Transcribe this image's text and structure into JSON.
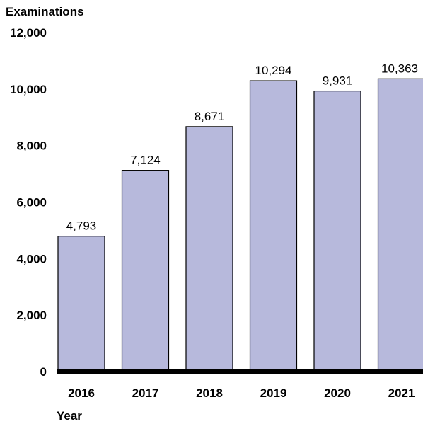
{
  "chart_data": {
    "type": "bar",
    "title": "",
    "ylabel": "Examinations",
    "xlabel": "Year",
    "categories": [
      "2016",
      "2017",
      "2018",
      "2019",
      "2020",
      "2021"
    ],
    "values": [
      4793,
      7124,
      8671,
      10294,
      9931,
      10363
    ],
    "data_labels": [
      "4,793",
      "7,124",
      "8,671",
      "10,294",
      "9,931",
      "10,363"
    ],
    "ylim": [
      0,
      12000
    ],
    "yticks": [
      0,
      2000,
      4000,
      6000,
      8000,
      10000,
      12000
    ],
    "ytick_labels": [
      "0",
      "2,000",
      "4,000",
      "6,000",
      "8,000",
      "10,000",
      "12,000"
    ],
    "grid": false,
    "legend": "none",
    "bar_color": "#b7b9dc"
  }
}
